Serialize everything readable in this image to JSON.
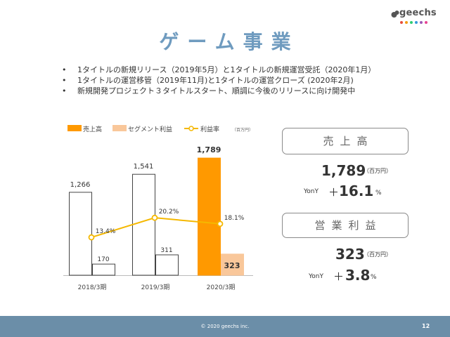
{
  "logo": {
    "text": "geechs",
    "dot_colors": [
      "#e74c3c",
      "#f39c12",
      "#2ecc71",
      "#3498db",
      "#9b59b6",
      "#e84393"
    ]
  },
  "title": "ゲーム事業",
  "bullets": [
    "1タイトルの新規リリース（2019年5月）と1タイトルの新規運営受託（2020年1月）",
    "1タイトルの運営移管（2019年11月)と1タイトルの運営クローズ (2020年2月)",
    "新規開発プロジェクト３タイトルスタート、順調に今後のリリースに向け開発中"
  ],
  "chart_data": {
    "type": "bar",
    "categories": [
      "2018/3期",
      "2019/3期",
      "2020/3期"
    ],
    "series": [
      {
        "name": "売上高",
        "values": [
          1266,
          1541,
          1789
        ],
        "color": "#ff9900",
        "labels": [
          "1,266",
          "1,541",
          "1,789"
        ]
      },
      {
        "name": "セグメント利益",
        "values": [
          170,
          311,
          323
        ],
        "color": "#f9c79a",
        "labels": [
          "170",
          "311",
          "323"
        ]
      },
      {
        "name": "利益率",
        "type": "line",
        "values": [
          13.4,
          20.2,
          18.1
        ],
        "color": "#f5b800",
        "labels": [
          "13.4%",
          "20.2%",
          "18.1%"
        ]
      }
    ],
    "unit_label": "（百万円）",
    "highlight_index": 2
  },
  "kpi": {
    "sales": {
      "label": "売上高",
      "value": "1,789",
      "unit": "（百万円）",
      "yony_label": "YonY",
      "sign": "＋",
      "change": "16.1",
      "pct": "%"
    },
    "op": {
      "label": "営業利益",
      "value": "323",
      "unit": "（百万円）",
      "yony_label": "YonY",
      "sign": "＋",
      "change": "3.8",
      "pct": "%"
    }
  },
  "footer": {
    "copyright": "© 2020 geechs inc.",
    "page": "12"
  }
}
